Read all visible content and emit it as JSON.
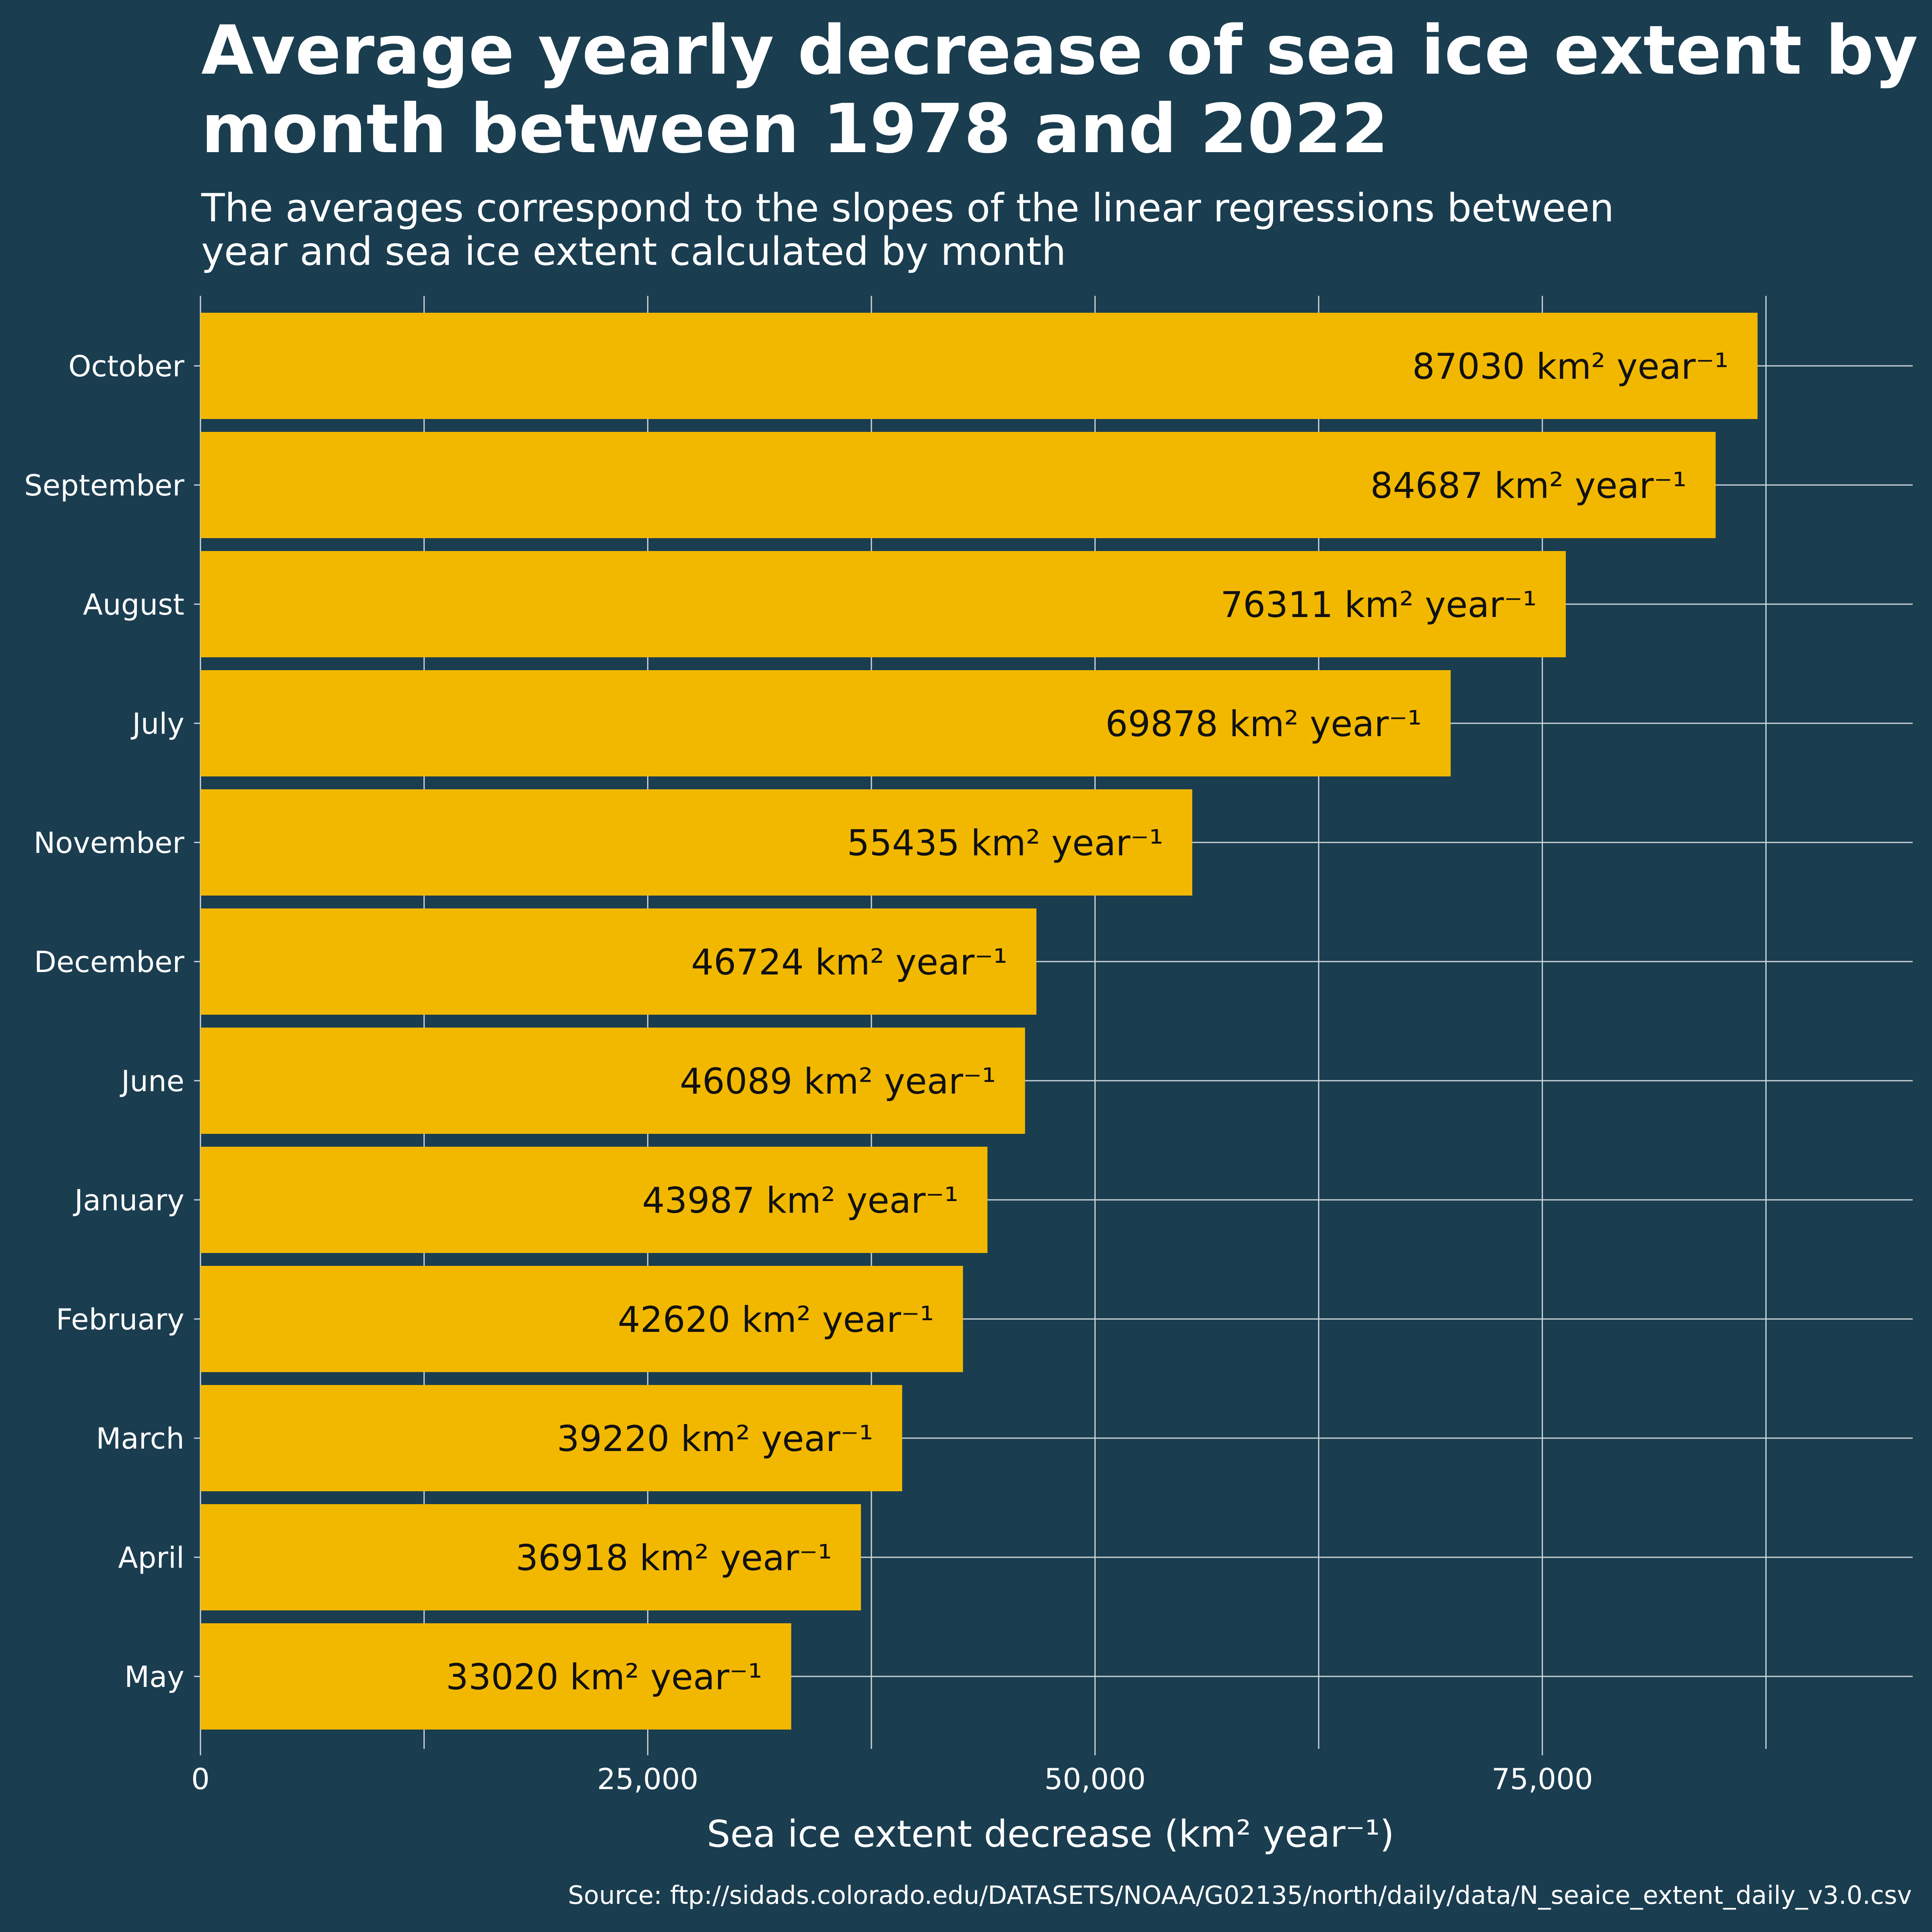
{
  "chart_data": {
    "type": "bar",
    "orientation": "horizontal",
    "title_lines": [
      "Average yearly decrease of sea ice extent by",
      "month between 1978 and 2022"
    ],
    "subtitle_lines": [
      "The averages correspond to the slopes of the linear regressions between",
      "year and sea ice extent calculated by month"
    ],
    "categories": [
      "October",
      "September",
      "August",
      "July",
      "November",
      "December",
      "June",
      "January",
      "February",
      "March",
      "April",
      "May"
    ],
    "values": [
      87030,
      84687,
      76311,
      69878,
      55435,
      46724,
      46089,
      43987,
      42620,
      39220,
      36918,
      33020
    ],
    "data_labels": [
      "87030 km² year⁻¹",
      "84687 km² year⁻¹",
      "76311 km² year⁻¹",
      "69878 km² year⁻¹",
      "55435 km² year⁻¹",
      "46724 km² year⁻¹",
      "46089 km² year⁻¹",
      "43987 km² year⁻¹",
      "42620 km² year⁻¹",
      "39220 km² year⁻¹",
      "36918 km² year⁻¹",
      "33020 km² year⁻¹"
    ],
    "xlabel": "Sea ice extent decrease (km² year⁻¹)",
    "ylabel": "",
    "xlim": [
      0,
      95700
    ],
    "x_ticks": [
      0,
      25000,
      50000,
      75000
    ],
    "x_tick_labels": [
      "0",
      "25,000",
      "50,000",
      "75,000"
    ],
    "grid": true,
    "caption": "Source: ftp://sidads.colorado.edu/DATASETS/NOAA/G02135/north/daily/data/N_seaice_extent_daily_v3.0.csv",
    "colors": {
      "background": "#1a3d50",
      "bar": "#f2b800",
      "grid": "#cfd6da",
      "text": "#ffffff",
      "label_text": "#111111"
    }
  }
}
